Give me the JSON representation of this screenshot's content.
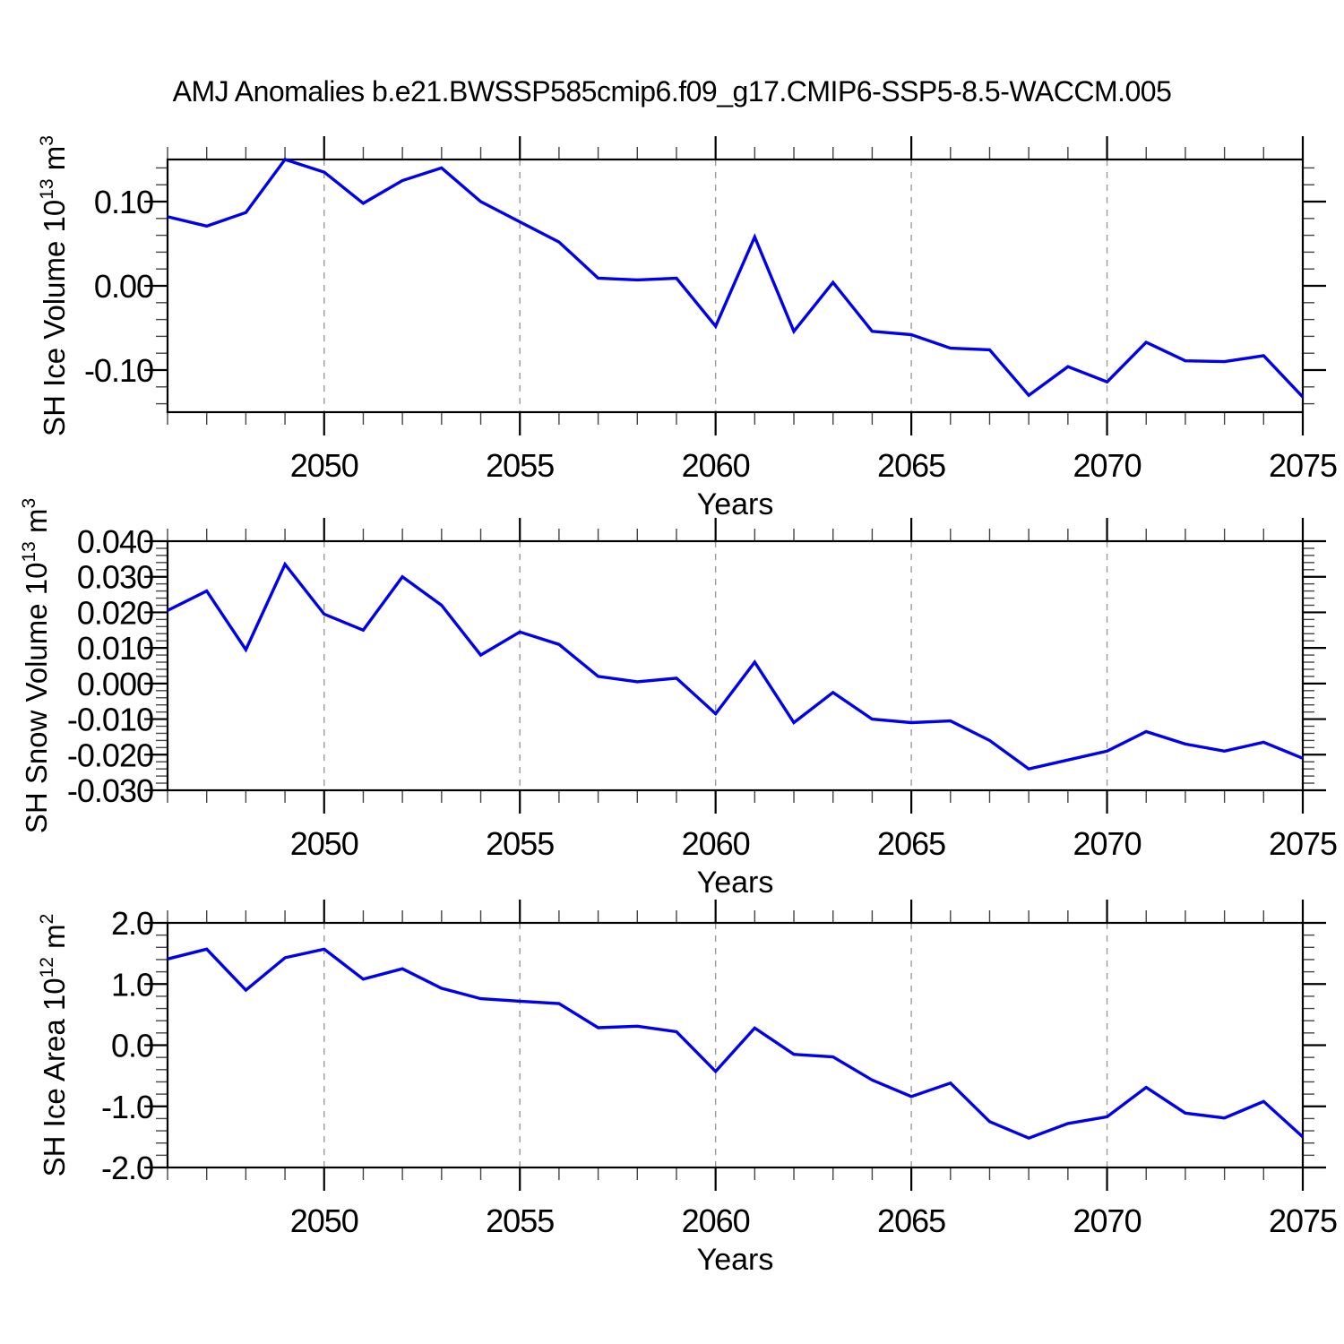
{
  "title": "AMJ Anomalies b.e21.BWSSP585cmip6.f09_g17.CMIP6-SSP5-8.5-WACCM.005",
  "colors": {
    "line": "#0000ee",
    "grid": "#9a9a9a",
    "axis": "#000000",
    "tick_minor": "#444444",
    "text": "#000000",
    "background": "#ffffff"
  },
  "chart_data": [
    {
      "type": "line",
      "title": "SH Ice Volume anomalies",
      "ylabel_plain": "SH Ice Volume 10^13 m^3",
      "ylabel_segments": [
        {
          "t": "SH Ice Volume 10"
        },
        {
          "t": "13",
          "sup": true
        },
        {
          "t": " m"
        },
        {
          "t": "3",
          "sup": true
        }
      ],
      "xlabel": "Years",
      "xlim": [
        2046,
        2075
      ],
      "ylim": [
        -0.15,
        0.15
      ],
      "grid": true,
      "grid_x": [
        2050,
        2055,
        2060,
        2065,
        2070
      ],
      "x_minor_step": 1,
      "y_minor_step": 0.02,
      "xticks": [
        {
          "v": 2050,
          "label": "2050"
        },
        {
          "v": 2055,
          "label": "2055"
        },
        {
          "v": 2060,
          "label": "2060"
        },
        {
          "v": 2065,
          "label": "2065"
        },
        {
          "v": 2070,
          "label": "2070"
        },
        {
          "v": 2075,
          "label": "2075"
        }
      ],
      "yticks": [
        {
          "v": 0.1,
          "label": "0.10"
        },
        {
          "v": 0.0,
          "label": "0.00"
        },
        {
          "v": -0.1,
          "label": "-0.10"
        }
      ],
      "x": [
        2046,
        2047,
        2048,
        2049,
        2050,
        2051,
        2052,
        2053,
        2054,
        2055,
        2056,
        2057,
        2058,
        2059,
        2060,
        2061,
        2062,
        2063,
        2064,
        2065,
        2066,
        2067,
        2068,
        2069,
        2070,
        2071,
        2072,
        2073,
        2074,
        2075
      ],
      "values": [
        0.082,
        0.071,
        0.087,
        0.15,
        0.135,
        0.098,
        0.125,
        0.14,
        0.1,
        0.076,
        0.052,
        0.009,
        0.007,
        0.009,
        -0.048,
        0.058,
        -0.054,
        0.004,
        -0.054,
        -0.058,
        -0.074,
        -0.076,
        -0.13,
        -0.096,
        -0.114,
        -0.067,
        -0.089,
        -0.09,
        -0.083,
        -0.132
      ]
    },
    {
      "type": "line",
      "title": "SH Snow Volume anomalies",
      "ylabel_plain": "SH Snow Volume 10^13 m^3",
      "ylabel_segments": [
        {
          "t": "SH Snow Volume 10"
        },
        {
          "t": "13",
          "sup": true
        },
        {
          "t": " m"
        },
        {
          "t": "3",
          "sup": true
        }
      ],
      "xlabel": "Years",
      "xlim": [
        2046,
        2075
      ],
      "ylim": [
        -0.03,
        0.04
      ],
      "grid": true,
      "grid_x": [
        2050,
        2055,
        2060,
        2065,
        2070
      ],
      "x_minor_step": 1,
      "y_minor_step": 0.002,
      "xticks": [
        {
          "v": 2050,
          "label": "2050"
        },
        {
          "v": 2055,
          "label": "2055"
        },
        {
          "v": 2060,
          "label": "2060"
        },
        {
          "v": 2065,
          "label": "2065"
        },
        {
          "v": 2070,
          "label": "2070"
        },
        {
          "v": 2075,
          "label": "2075"
        }
      ],
      "yticks": [
        {
          "v": 0.04,
          "label": "0.040"
        },
        {
          "v": 0.03,
          "label": "0.030"
        },
        {
          "v": 0.02,
          "label": "0.020"
        },
        {
          "v": 0.01,
          "label": "0.010"
        },
        {
          "v": 0.0,
          "label": "0.000"
        },
        {
          "v": -0.01,
          "label": "-0.010"
        },
        {
          "v": -0.02,
          "label": "-0.020"
        },
        {
          "v": -0.03,
          "label": "-0.030"
        }
      ],
      "x": [
        2046,
        2047,
        2048,
        2049,
        2050,
        2051,
        2052,
        2053,
        2054,
        2055,
        2056,
        2057,
        2058,
        2059,
        2060,
        2061,
        2062,
        2063,
        2064,
        2065,
        2066,
        2067,
        2068,
        2069,
        2070,
        2071,
        2072,
        2073,
        2074,
        2075
      ],
      "values": [
        0.0205,
        0.026,
        0.0095,
        0.0335,
        0.0195,
        0.015,
        0.03,
        0.022,
        0.008,
        0.0145,
        0.011,
        0.002,
        0.0005,
        0.0015,
        -0.0085,
        0.006,
        -0.011,
        -0.0025,
        -0.01,
        -0.011,
        -0.0105,
        -0.016,
        -0.024,
        -0.0215,
        -0.019,
        -0.0135,
        -0.017,
        -0.019,
        -0.0165,
        -0.021
      ]
    },
    {
      "type": "line",
      "title": "SH Ice Area anomalies",
      "ylabel_plain": "SH Ice Area 10^12 m^2",
      "ylabel_segments": [
        {
          "t": "SH Ice Area 10"
        },
        {
          "t": "12",
          "sup": true
        },
        {
          "t": " m"
        },
        {
          "t": "2",
          "sup": true
        }
      ],
      "xlabel": "Years",
      "xlim": [
        2046,
        2075
      ],
      "ylim": [
        -2.0,
        2.0
      ],
      "grid": true,
      "grid_x": [
        2050,
        2055,
        2060,
        2065,
        2070
      ],
      "x_minor_step": 1,
      "y_minor_step": 0.2,
      "xticks": [
        {
          "v": 2050,
          "label": "2050"
        },
        {
          "v": 2055,
          "label": "2055"
        },
        {
          "v": 2060,
          "label": "2060"
        },
        {
          "v": 2065,
          "label": "2065"
        },
        {
          "v": 2070,
          "label": "2070"
        },
        {
          "v": 2075,
          "label": "2075"
        }
      ],
      "yticks": [
        {
          "v": 2.0,
          "label": "2.0"
        },
        {
          "v": 1.0,
          "label": "1.0"
        },
        {
          "v": 0.0,
          "label": "0.0"
        },
        {
          "v": -1.0,
          "label": "-1.0"
        },
        {
          "v": -2.0,
          "label": "-2.0"
        }
      ],
      "x": [
        2046,
        2047,
        2048,
        2049,
        2050,
        2051,
        2052,
        2053,
        2054,
        2055,
        2056,
        2057,
        2058,
        2059,
        2060,
        2061,
        2062,
        2063,
        2064,
        2065,
        2066,
        2067,
        2068,
        2069,
        2070,
        2071,
        2072,
        2073,
        2074,
        2075
      ],
      "values": [
        1.41,
        1.57,
        0.9,
        1.43,
        1.57,
        1.08,
        1.25,
        0.93,
        0.76,
        0.72,
        0.68,
        0.285,
        0.31,
        0.22,
        -0.43,
        0.28,
        -0.15,
        -0.19,
        -0.57,
        -0.84,
        -0.62,
        -1.25,
        -1.52,
        -1.28,
        -1.17,
        -0.69,
        -1.11,
        -1.19,
        -0.92,
        -1.5
      ]
    }
  ]
}
